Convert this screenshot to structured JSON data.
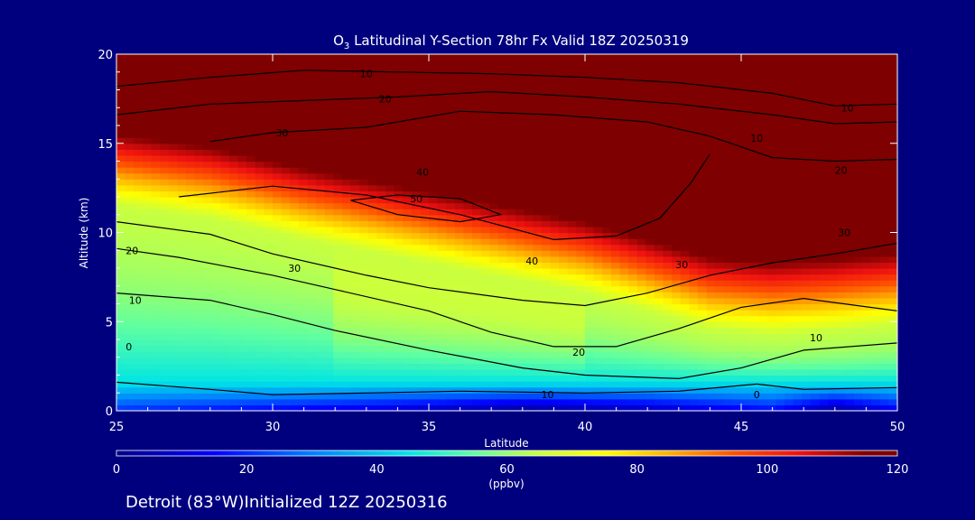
{
  "chart_data": {
    "type": "heatmap",
    "title_species": "O",
    "title_subscript": "3",
    "title_rest": " Latitudinal Y-Section 78hr  Fx Valid 18Z 20250319",
    "xlabel": "Latitude",
    "ylabel": "Altitude (km)",
    "xlim": [
      25,
      50
    ],
    "ylim": [
      0,
      20
    ],
    "x_ticks": [
      25,
      30,
      35,
      40,
      45,
      50
    ],
    "y_ticks": [
      0,
      5,
      10,
      15,
      20
    ],
    "colorbar": {
      "min": 0,
      "max": 120,
      "ticks": [
        0,
        20,
        40,
        60,
        80,
        100,
        120
      ],
      "unit": "(ppbv)",
      "stops": [
        {
          "v": 0,
          "color": "#00008b"
        },
        {
          "v": 15,
          "color": "#0000ff"
        },
        {
          "v": 30,
          "color": "#0080ff"
        },
        {
          "v": 45,
          "color": "#00e5e5"
        },
        {
          "v": 55,
          "color": "#60ffa0"
        },
        {
          "v": 65,
          "color": "#c8ff40"
        },
        {
          "v": 75,
          "color": "#ffff00"
        },
        {
          "v": 85,
          "color": "#ffb000"
        },
        {
          "v": 95,
          "color": "#ff5000"
        },
        {
          "v": 105,
          "color": "#ee1010"
        },
        {
          "v": 115,
          "color": "#7f0000"
        },
        {
          "v": 120,
          "color": "#7f0000"
        }
      ]
    },
    "contours": [
      {
        "level": 0,
        "points": [
          [
            25,
            1.6
          ],
          [
            28,
            1.2
          ],
          [
            30,
            0.9
          ],
          [
            33,
            1.0
          ],
          [
            36,
            1.1
          ],
          [
            40,
            1.0
          ],
          [
            43,
            1.1
          ],
          [
            45.5,
            1.5
          ],
          [
            47,
            1.2
          ],
          [
            50,
            1.3
          ]
        ]
      },
      {
        "level": 10,
        "points": [
          [
            25,
            6.6
          ],
          [
            28,
            6.2
          ],
          [
            30,
            5.4
          ],
          [
            32,
            4.5
          ],
          [
            35,
            3.4
          ],
          [
            38,
            2.4
          ],
          [
            40,
            2.0
          ],
          [
            43,
            1.8
          ],
          [
            45,
            2.4
          ],
          [
            47,
            3.4
          ],
          [
            50,
            3.8
          ]
        ]
      },
      {
        "level": 20,
        "points": [
          [
            25,
            9.1
          ],
          [
            27,
            8.6
          ],
          [
            30,
            7.6
          ],
          [
            32,
            6.8
          ],
          [
            35,
            5.6
          ],
          [
            37,
            4.4
          ],
          [
            39,
            3.6
          ],
          [
            41,
            3.6
          ],
          [
            43,
            4.6
          ],
          [
            45,
            5.8
          ],
          [
            47,
            6.3
          ],
          [
            50,
            5.6
          ]
        ]
      },
      {
        "level": 30,
        "points": [
          [
            25,
            10.6
          ],
          [
            28,
            9.9
          ],
          [
            30,
            8.8
          ],
          [
            33,
            7.6
          ],
          [
            35,
            6.9
          ],
          [
            38,
            6.2
          ],
          [
            40,
            5.9
          ],
          [
            42,
            6.6
          ],
          [
            44,
            7.6
          ],
          [
            46,
            8.3
          ],
          [
            48,
            8.8
          ],
          [
            50,
            9.4
          ]
        ]
      },
      {
        "level": 40,
        "points": [
          [
            27,
            12.0
          ],
          [
            30,
            12.6
          ],
          [
            33,
            12.1
          ],
          [
            36,
            11.0
          ],
          [
            39,
            9.6
          ],
          [
            41,
            9.8
          ],
          [
            42.4,
            10.8
          ],
          [
            43.4,
            12.8
          ],
          [
            44,
            14.4
          ]
        ]
      },
      {
        "level": 50,
        "points": [
          [
            32.5,
            11.8
          ],
          [
            34,
            12.1
          ],
          [
            36,
            11.9
          ],
          [
            37.3,
            11.0
          ],
          [
            36,
            10.6
          ],
          [
            34,
            11.0
          ],
          [
            32.5,
            11.8
          ]
        ]
      },
      {
        "level": 30,
        "points": [
          [
            28,
            15.1
          ],
          [
            30,
            15.6
          ],
          [
            33,
            15.9
          ],
          [
            36,
            16.8
          ],
          [
            39,
            16.6
          ],
          [
            42,
            16.2
          ],
          [
            44,
            15.4
          ],
          [
            46,
            14.2
          ],
          [
            48,
            14.0
          ],
          [
            50,
            14.1
          ]
        ]
      },
      {
        "level": 20,
        "points": [
          [
            25,
            16.6
          ],
          [
            28,
            17.2
          ],
          [
            31,
            17.4
          ],
          [
            34,
            17.6
          ],
          [
            37,
            17.9
          ],
          [
            40,
            17.6
          ],
          [
            43,
            17.2
          ],
          [
            46,
            16.6
          ],
          [
            48,
            16.1
          ],
          [
            50,
            16.2
          ]
        ]
      },
      {
        "level": 10,
        "points": [
          [
            25,
            18.2
          ],
          [
            28,
            18.7
          ],
          [
            31,
            19.1
          ],
          [
            34,
            19.0
          ],
          [
            37,
            18.9
          ],
          [
            40,
            18.7
          ],
          [
            43,
            18.4
          ],
          [
            46,
            17.8
          ],
          [
            48,
            17.1
          ],
          [
            50,
            17.2
          ]
        ]
      }
    ],
    "contour_labels": [
      {
        "text": "10",
        "x": 33.0,
        "y": 18.9
      },
      {
        "text": "20",
        "x": 33.6,
        "y": 17.5
      },
      {
        "text": "30",
        "x": 30.3,
        "y": 15.6
      },
      {
        "text": "40",
        "x": 34.8,
        "y": 13.4
      },
      {
        "text": "50",
        "x": 34.6,
        "y": 11.9
      },
      {
        "text": "40",
        "x": 38.3,
        "y": 8.4
      },
      {
        "text": "30",
        "x": 30.7,
        "y": 8.0
      },
      {
        "text": "20",
        "x": 25.5,
        "y": 9.0
      },
      {
        "text": "10",
        "x": 25.6,
        "y": 6.2
      },
      {
        "text": "0",
        "x": 25.4,
        "y": 3.6
      },
      {
        "text": "20",
        "x": 39.8,
        "y": 3.3
      },
      {
        "text": "10",
        "x": 38.8,
        "y": 0.9
      },
      {
        "text": "0",
        "x": 45.5,
        "y": 0.9
      },
      {
        "text": "10",
        "x": 47.4,
        "y": 4.1
      },
      {
        "text": "30",
        "x": 43.1,
        "y": 8.2
      },
      {
        "text": "30",
        "x": 48.3,
        "y": 10.0
      },
      {
        "text": "20",
        "x": 48.2,
        "y": 13.5
      },
      {
        "text": "10",
        "x": 48.4,
        "y": 17.0
      },
      {
        "text": "10",
        "x": 45.5,
        "y": 15.3
      }
    ],
    "field": {
      "base_stops": [
        {
          "lat": 25,
          "value": 20
        },
        {
          "lat": 33,
          "value": 10
        },
        {
          "lat": 38,
          "value": 0
        },
        {
          "lat": 42,
          "value": 5
        },
        {
          "lat": 46,
          "value": 15
        },
        {
          "lat": 48,
          "value": 0
        },
        {
          "lat": 50,
          "value": 12
        }
      ],
      "tropopause_km": [
        {
          "lat": 25,
          "value": 15.5
        },
        {
          "lat": 28,
          "value": 14.8
        },
        {
          "lat": 31,
          "value": 13.6
        },
        {
          "lat": 34,
          "value": 12.6
        },
        {
          "lat": 37,
          "value": 11.6
        },
        {
          "lat": 40,
          "value": 10.6
        },
        {
          "lat": 42,
          "value": 9.6
        },
        {
          "lat": 44,
          "value": 8.6
        },
        {
          "lat": 46,
          "value": 8.3
        },
        {
          "lat": 48,
          "value": 8.5
        },
        {
          "lat": 50,
          "value": 8.8
        }
      ]
    }
  },
  "footer": {
    "location": "Detroit (83°W)Initialized 12Z 20250316"
  }
}
